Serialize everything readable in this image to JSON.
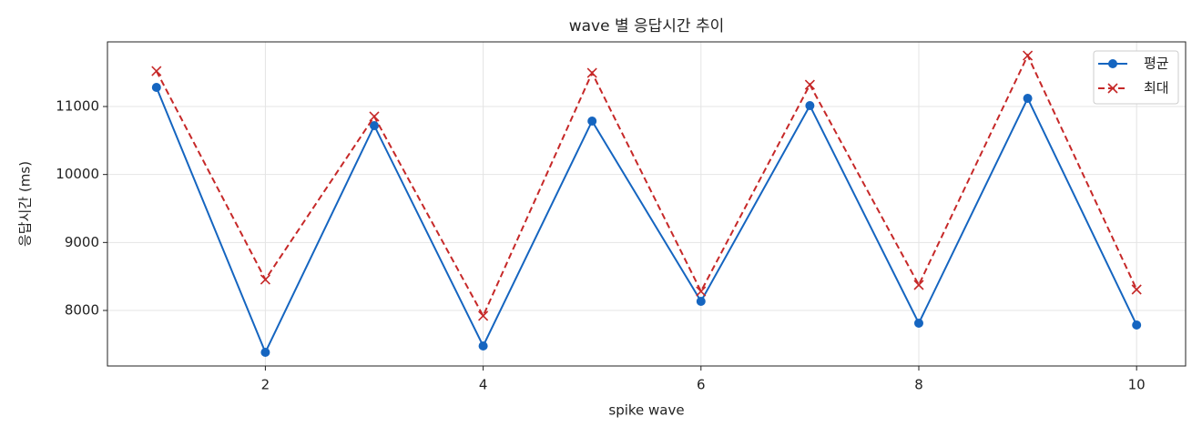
{
  "chart_data": {
    "type": "line",
    "title": "wave 별 응답시간 추이",
    "xlabel": "spike wave",
    "ylabel": "응답시간 (ms)",
    "x": [
      1,
      2,
      3,
      4,
      5,
      6,
      7,
      8,
      9,
      10
    ],
    "series": [
      {
        "name": "평균",
        "color": "#1565c0",
        "linestyle": "solid",
        "marker": "circle",
        "values": [
          11281,
          7384,
          10719,
          7478,
          10786,
          8134,
          11013,
          7813,
          11120,
          7786
        ]
      },
      {
        "name": "최대",
        "color": "#c62828",
        "linestyle": "dashed",
        "marker": "x",
        "values": [
          11522,
          8455,
          10853,
          7920,
          11495,
          8281,
          11321,
          8375,
          11750,
          8308
        ]
      }
    ],
    "xlim": [
      0.55,
      10.45
    ],
    "ylim": [
      7183,
      11951
    ],
    "xticks": [
      2,
      4,
      6,
      8,
      10
    ],
    "yticks": [
      8000,
      9000,
      10000,
      11000
    ],
    "grid": true,
    "legend": "upper right"
  }
}
